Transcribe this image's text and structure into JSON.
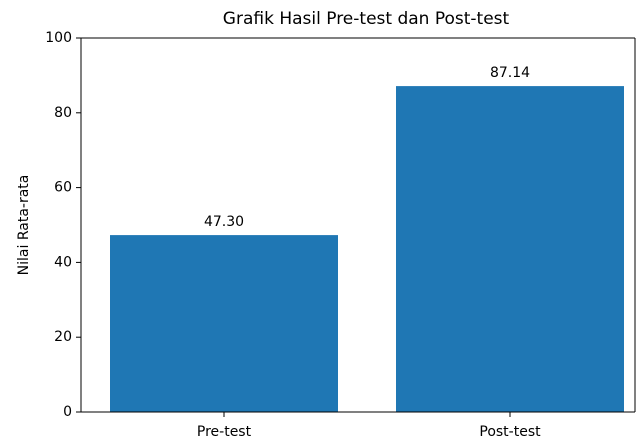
{
  "chart_data": {
    "type": "bar",
    "title": "Grafik Hasil Pre-test dan Post-test",
    "ylabel": "Nilai Rata-rata",
    "categories": [
      "Pre-test",
      "Post-test"
    ],
    "values": [
      47.3,
      87.14
    ],
    "value_labels": [
      "47.30",
      "87.14"
    ],
    "color": "#1f77b4",
    "ylim": [
      0,
      100
    ],
    "yticks": [
      0,
      20,
      40,
      60,
      80,
      100
    ],
    "grid": false
  }
}
